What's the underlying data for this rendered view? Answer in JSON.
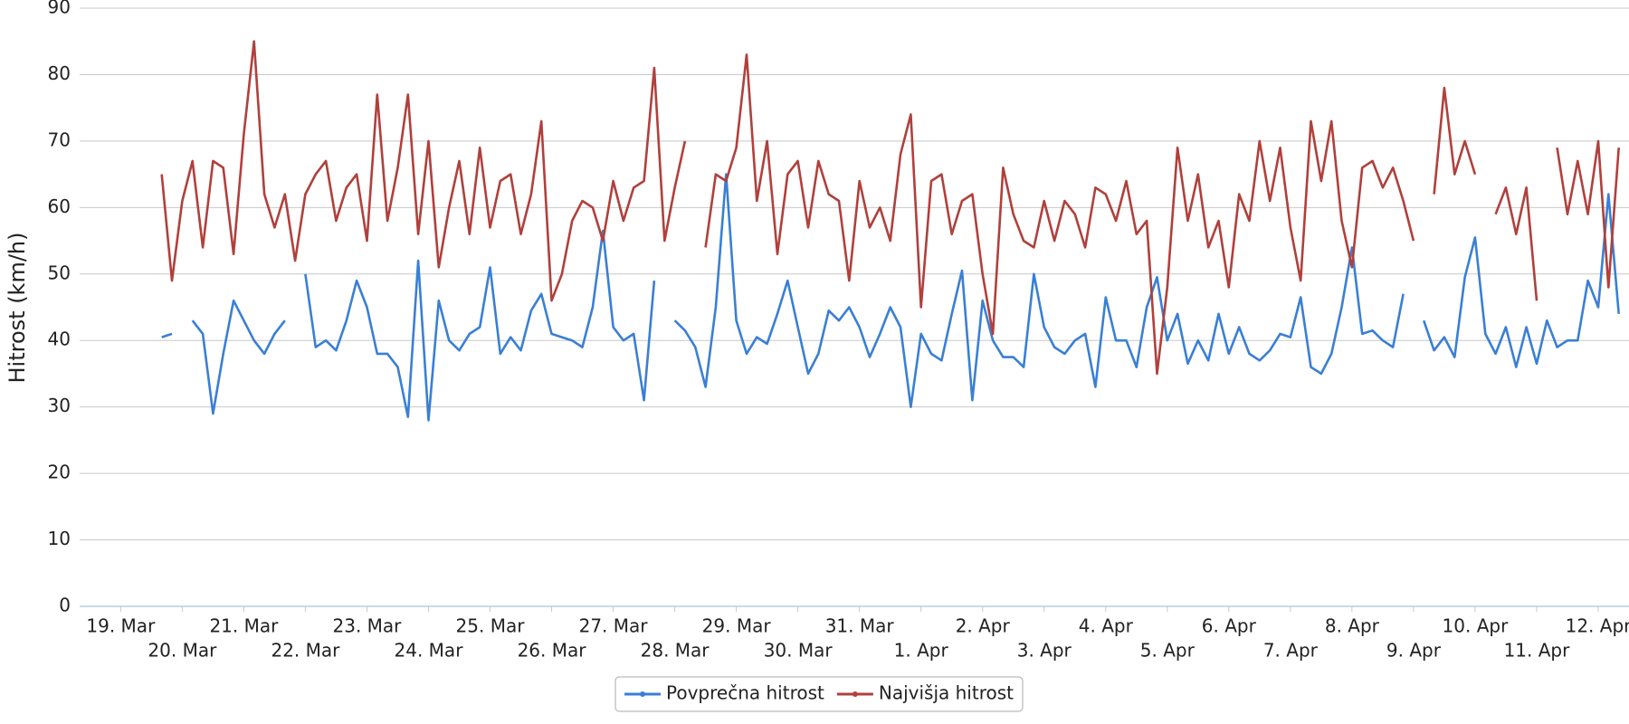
{
  "chart_data": {
    "type": "line",
    "y_label": "Hitrost (km/h)",
    "categories": [
      null,
      null,
      null,
      null,
      "19. Mar",
      null,
      null,
      null,
      null,
      null,
      "20. Mar",
      null,
      null,
      null,
      null,
      null,
      "21. Mar",
      null,
      null,
      null,
      null,
      null,
      "22. Mar",
      null,
      null,
      null,
      null,
      null,
      "23. Mar",
      null,
      null,
      null,
      null,
      null,
      "24. Mar",
      null,
      null,
      null,
      null,
      null,
      "25. Mar",
      null,
      null,
      null,
      null,
      null,
      "26. Mar",
      null,
      null,
      null,
      null,
      null,
      "27. Mar",
      null,
      null,
      null,
      null,
      null,
      "28. Mar",
      null,
      null,
      null,
      null,
      null,
      "29. Mar",
      null,
      null,
      null,
      null,
      null,
      "30. Mar",
      null,
      null,
      null,
      null,
      null,
      "31. Mar",
      null,
      null,
      null,
      null,
      null,
      "1. Apr",
      null,
      null,
      null,
      null,
      null,
      "2. Apr",
      null,
      null,
      null,
      null,
      null,
      "3. Apr",
      null,
      null,
      null,
      null,
      null,
      "4. Apr",
      null,
      null,
      null,
      null,
      null,
      "5. Apr",
      null,
      null,
      null,
      null,
      null,
      "6. Apr",
      null,
      null,
      null,
      null,
      null,
      "7. Apr",
      null,
      null,
      null,
      null,
      null,
      "8. Apr",
      null,
      null,
      null,
      null,
      null,
      "9. Apr",
      null,
      null,
      null,
      null,
      null,
      "10. Apr",
      null,
      null,
      null,
      null,
      null,
      "11. Apr",
      null,
      null,
      null,
      null,
      null,
      "12. Apr",
      null,
      null
    ],
    "series": [
      {
        "name": "Povprečna hitrost",
        "color": "#3a7fd5",
        "values": [
          null,
          null,
          null,
          null,
          null,
          null,
          null,
          null,
          40.5,
          41,
          null,
          43,
          41,
          29,
          38,
          46,
          43,
          40,
          38,
          41,
          43,
          null,
          50,
          39,
          40,
          38.5,
          43,
          49,
          45,
          38,
          38,
          36,
          28.5,
          52,
          28,
          46,
          40,
          38.5,
          41,
          42,
          51,
          38,
          40.5,
          38.5,
          44.5,
          47,
          41,
          40.5,
          40,
          39,
          45,
          56.5,
          42,
          40,
          41,
          31,
          49,
          null,
          43,
          41.5,
          39,
          33,
          45,
          65,
          43,
          38,
          40.5,
          39.5,
          44,
          49,
          42,
          35,
          38,
          44.5,
          43,
          45,
          42,
          37.5,
          41,
          45,
          42,
          30,
          41,
          38,
          37,
          44,
          50.5,
          31,
          46,
          40,
          37.5,
          37.5,
          36,
          50,
          42,
          39,
          38,
          40,
          41,
          33,
          46.5,
          40,
          40,
          36,
          45,
          49.5,
          40,
          44,
          36.5,
          40,
          37,
          44,
          38,
          42,
          38,
          37,
          38.5,
          41,
          40.5,
          46.5,
          36,
          35,
          38,
          45,
          54,
          41,
          41.5,
          40,
          39,
          47,
          null,
          43,
          38.5,
          40.5,
          37.5,
          49.5,
          55.5,
          41,
          38,
          42,
          36,
          42,
          36.5,
          43,
          39,
          40,
          40,
          49,
          45,
          62,
          44
        ]
      },
      {
        "name": "Najvišja hitrost",
        "color": "#b0403c",
        "values": [
          null,
          null,
          null,
          null,
          null,
          null,
          null,
          null,
          65,
          49,
          61,
          67,
          54,
          67,
          66,
          53,
          71,
          85,
          62,
          57,
          62,
          52,
          62,
          65,
          67,
          58,
          63,
          65,
          55,
          77,
          58,
          66,
          77,
          56,
          70,
          51,
          60,
          67,
          56,
          69,
          57,
          64,
          65,
          56,
          62,
          73,
          46,
          50,
          58,
          61,
          60,
          55,
          64,
          58,
          63,
          64,
          81,
          55,
          63,
          70,
          null,
          54,
          65,
          64,
          69,
          83,
          61,
          70,
          53,
          65,
          67,
          57,
          67,
          62,
          61,
          49,
          64,
          57,
          60,
          55,
          68,
          74,
          45,
          64,
          65,
          56,
          61,
          62,
          50,
          41,
          66,
          59,
          55,
          54,
          61,
          55,
          61,
          59,
          54,
          63,
          62,
          58,
          64,
          56,
          58,
          35,
          48,
          69,
          58,
          65,
          54,
          58,
          48,
          62,
          58,
          70,
          61,
          69,
          57,
          49,
          73,
          64,
          73,
          58,
          51,
          66,
          67,
          63,
          66,
          61,
          55,
          null,
          62,
          78,
          65,
          70,
          65,
          null,
          59,
          63,
          56,
          63,
          46,
          null,
          69,
          59,
          67,
          59,
          70,
          48,
          69
        ]
      }
    ],
    "ylim": [
      0,
      90
    ],
    "yticks": [
      0,
      10,
      20,
      30,
      40,
      50,
      60,
      70,
      80,
      90
    ],
    "grid": true,
    "legend": "bottom"
  }
}
